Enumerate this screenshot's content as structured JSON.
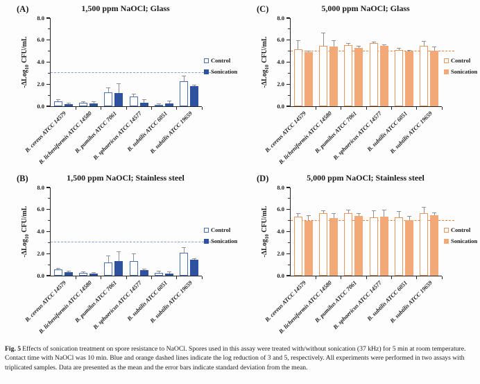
{
  "figure": {
    "caption_label": "Fig. 5",
    "caption_text": "Effects of sonication treatment on spore resistance to NaOCl. Spores used in this assay were treated with/without sonication (37 kHz) for 5 min at room temperature. Contact time with NaOCl was 10 min. Blue and orange dashed lines indicate the log reduction of 3 and 5, respectively. All experiments were performed in two assays with triplicated samples. Data are presented as the mean and the error bars indicate standard deviation from the mean."
  },
  "axis": {
    "ylabel_prefix": "-ΔLog",
    "ylabel_sub": "10",
    "ylabel_suffix": " CFU/mL",
    "ylim": [
      0,
      8
    ],
    "major_ticks": [
      {
        "v": 0,
        "label": "0.0"
      },
      {
        "v": 2,
        "label": "2.0"
      },
      {
        "v": 4,
        "label": "4.0"
      },
      {
        "v": 6,
        "label": "6.0"
      },
      {
        "v": 8,
        "label": "8.0"
      }
    ],
    "minor_ticks": [
      1,
      3,
      5,
      7
    ]
  },
  "legend": {
    "control": "Control",
    "sonication": "Sonication"
  },
  "chart_data": [
    {
      "id": "A",
      "label": "(A)",
      "type": "bar",
      "title": "1,500 ppm NaOCl; Glass",
      "categories": [
        "B. cereus ATCC 14579",
        "B. licheniformis ATCC 14580",
        "B. pumilus ATCC 7061",
        "B. sphaericus ATCC 14577",
        "B. subtilis ATCC 6051",
        "B. subtilis ATCC 19659"
      ],
      "series": [
        {
          "name": "Control",
          "style": "open",
          "values": [
            0.45,
            0.3,
            1.25,
            0.9,
            0.15,
            2.25
          ],
          "errors": [
            0.1,
            0.05,
            0.4,
            0.2,
            0.05,
            0.45
          ]
        },
        {
          "name": "Sonication",
          "style": "filled",
          "values": [
            0.2,
            0.28,
            1.2,
            0.3,
            0.25,
            1.8
          ],
          "errors": [
            0.05,
            0.1,
            0.8,
            0.25,
            0.2,
            0.1
          ]
        }
      ],
      "dashed_line": {
        "value": 3,
        "color": "#7E9FD4"
      },
      "colors": {
        "fill": "#2E529F",
        "border": "#4A6CB0"
      },
      "ylim": [
        0,
        8
      ]
    },
    {
      "id": "B",
      "label": "(B)",
      "type": "bar",
      "title": "1,500 ppm NaOCl; Stainless steel",
      "categories": [
        "B. cereus ATCC 14579",
        "B. licheniformis ATCC 14580",
        "B. pumilus ATCC 7061",
        "B. sphaericus ATCC 14577",
        "B. subtilis ATCC 6051",
        "B. subtilis ATCC 19659"
      ],
      "series": [
        {
          "name": "Control",
          "style": "open",
          "values": [
            0.55,
            0.28,
            1.2,
            1.35,
            0.25,
            2.05
          ],
          "errors": [
            0.08,
            0.03,
            0.55,
            0.6,
            0.15,
            0.45
          ]
        },
        {
          "name": "Sonication",
          "style": "filled",
          "values": [
            0.3,
            0.2,
            1.3,
            0.5,
            0.2,
            1.45
          ],
          "errors": [
            0.1,
            0.07,
            0.85,
            0.05,
            0.1,
            0.05
          ]
        }
      ],
      "dashed_line": {
        "value": 3,
        "color": "#7E9FD4"
      },
      "colors": {
        "fill": "#2E529F",
        "border": "#4A6CB0"
      },
      "ylim": [
        0,
        8
      ]
    },
    {
      "id": "C",
      "label": "(C)",
      "type": "bar",
      "title": "5,000 ppm NaOCl; Glass",
      "categories": [
        "B. cereus ATCC 14579",
        "B. licheniformis ATCC 14580",
        "B. pumilus ATCC 7061",
        "B. sphaericus ATCC 14577",
        "B. subtilis ATCC 6051",
        "B. subtilis ATCC 19659"
      ],
      "series": [
        {
          "name": "Control",
          "style": "open",
          "values": [
            5.15,
            5.5,
            5.55,
            5.75,
            5.1,
            5.45
          ],
          "errors": [
            0.75,
            1.1,
            0.15,
            0.05,
            0.15,
            0.4
          ]
        },
        {
          "name": "Sonication",
          "style": "filled",
          "values": [
            4.9,
            5.4,
            5.3,
            5.45,
            5.0,
            5.05
          ],
          "errors": [
            0.1,
            0.55,
            0.1,
            0.1,
            0.05,
            0.3
          ]
        }
      ],
      "dashed_line": {
        "value": 5,
        "color": "#E8803C"
      },
      "colors": {
        "fill": "#F3A877",
        "border": "#E8945A"
      },
      "ylim": [
        0,
        8
      ]
    },
    {
      "id": "D",
      "label": "(D)",
      "type": "bar",
      "title": "5,000 ppm NaOCl; Stainless steel",
      "categories": [
        "B. cereus ATCC 14579",
        "B. licheniformis ATCC 14580",
        "B. pumilus ATCC 7061",
        "B. sphaericus ATCC 14577",
        "B. subtilis ATCC 6051",
        "B. subtilis ATCC 19659"
      ],
      "series": [
        {
          "name": "Control",
          "style": "open",
          "values": [
            5.35,
            5.7,
            5.65,
            5.3,
            5.3,
            5.7
          ],
          "errors": [
            0.25,
            0.15,
            0.25,
            0.55,
            0.5,
            0.5
          ]
        },
        {
          "name": "Sonication",
          "style": "filled",
          "values": [
            4.95,
            5.25,
            5.4,
            5.35,
            5.05,
            5.45
          ],
          "errors": [
            0.45,
            0.35,
            0.2,
            0.55,
            0.3,
            0.2
          ]
        }
      ],
      "dashed_line": {
        "value": 5,
        "color": "#E8803C"
      },
      "colors": {
        "fill": "#F3A877",
        "border": "#E8945A"
      },
      "ylim": [
        0,
        8
      ]
    }
  ]
}
